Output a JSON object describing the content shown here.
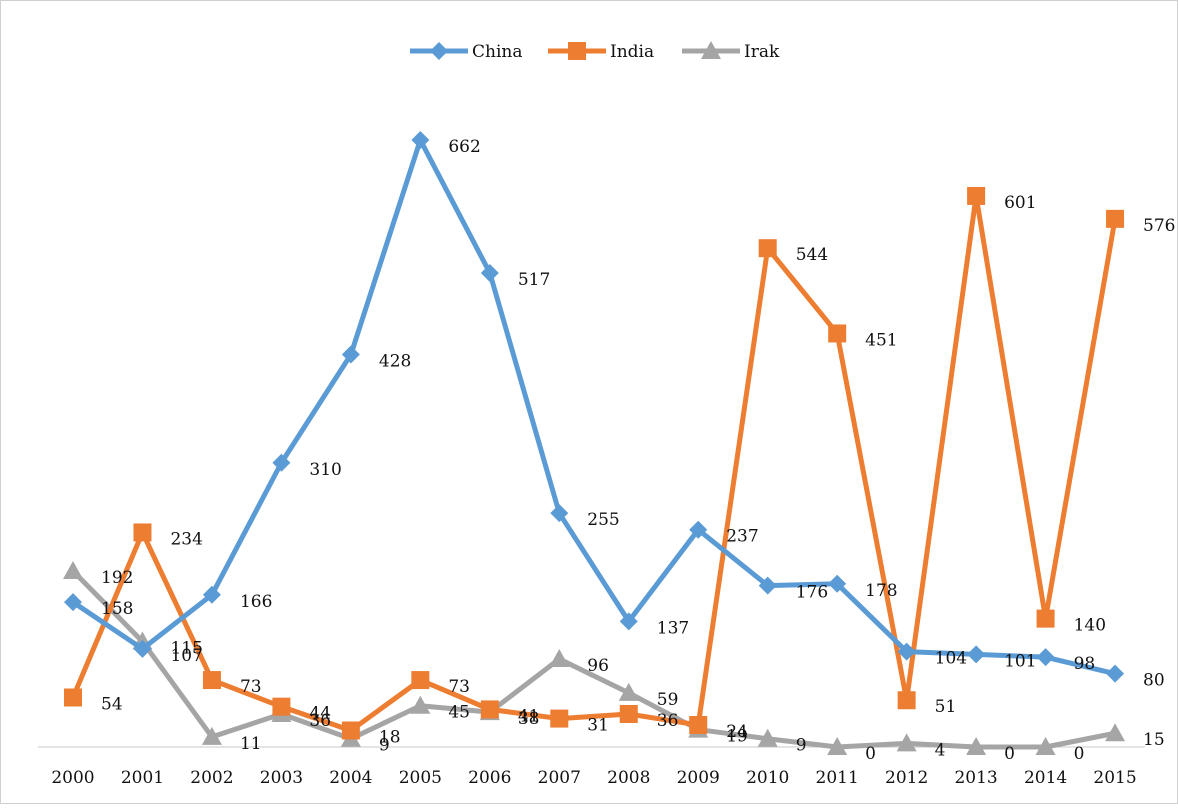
{
  "chart_data": {
    "type": "line",
    "title": "",
    "xlabel": "",
    "ylabel": "",
    "ylim": [
      0,
      700
    ],
    "grid": false,
    "y_axis_shown": false,
    "legend_position": "top-center",
    "categories": [
      "2000",
      "2001",
      "2002",
      "2003",
      "2004",
      "2005",
      "2006",
      "2007",
      "2008",
      "2009",
      "2010",
      "2011",
      "2012",
      "2013",
      "2014",
      "2015"
    ],
    "series": [
      {
        "name": "China",
        "color": "#5B9BD5",
        "marker": "diamond",
        "values": [
          158,
          107,
          166,
          310,
          428,
          662,
          517,
          255,
          137,
          237,
          176,
          178,
          104,
          101,
          98,
          80
        ]
      },
      {
        "name": "India",
        "color": "#ED7D31",
        "marker": "square",
        "values": [
          54,
          234,
          73,
          44,
          18,
          73,
          41,
          31,
          36,
          24,
          544,
          451,
          51,
          601,
          140,
          576
        ]
      },
      {
        "name": "Irak",
        "color": "#A5A5A5",
        "marker": "triangle",
        "values": [
          192,
          115,
          11,
          36,
          9,
          45,
          38,
          96,
          59,
          19,
          9,
          0,
          4,
          0,
          0,
          15
        ]
      }
    ]
  }
}
